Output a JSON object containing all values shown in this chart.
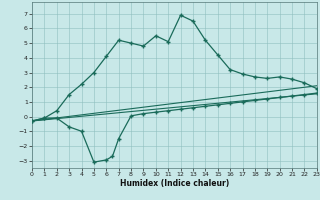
{
  "xlabel": "Humidex (Indice chaleur)",
  "background_color": "#c8e8e8",
  "line_color": "#1a6b5a",
  "xlim": [
    0,
    23
  ],
  "ylim": [
    -3.5,
    7.8
  ],
  "xticks": [
    0,
    1,
    2,
    3,
    4,
    5,
    6,
    7,
    8,
    9,
    10,
    11,
    12,
    13,
    14,
    15,
    16,
    17,
    18,
    19,
    20,
    21,
    22,
    23
  ],
  "yticks": [
    -3,
    -2,
    -1,
    0,
    1,
    2,
    3,
    4,
    5,
    6,
    7
  ],
  "upper_x": [
    0,
    1,
    2,
    3,
    4,
    5,
    6,
    7,
    8,
    9,
    10,
    11,
    12,
    13,
    14,
    15,
    16,
    17,
    18,
    19,
    20,
    21,
    22,
    23
  ],
  "upper_y": [
    -0.3,
    -0.1,
    0.4,
    1.5,
    2.2,
    3.0,
    4.1,
    5.2,
    5.0,
    4.8,
    5.5,
    5.1,
    6.9,
    6.5,
    5.2,
    4.2,
    3.2,
    2.9,
    2.7,
    2.6,
    2.7,
    2.55,
    2.3,
    1.9
  ],
  "lower_x": [
    0,
    1,
    2,
    3,
    4,
    5,
    6,
    6.5,
    7,
    8,
    9,
    10,
    11,
    12,
    13,
    14,
    15,
    16,
    17,
    18,
    19,
    20,
    21,
    22,
    23
  ],
  "lower_y": [
    -0.3,
    -0.1,
    -0.1,
    -0.7,
    -1.0,
    -3.1,
    -2.95,
    -2.7,
    -1.5,
    0.05,
    0.2,
    0.3,
    0.4,
    0.5,
    0.6,
    0.7,
    0.8,
    0.9,
    1.0,
    1.1,
    1.2,
    1.3,
    1.4,
    1.5,
    1.6
  ],
  "line1_x": [
    0,
    23
  ],
  "line1_y": [
    -0.3,
    1.55
  ],
  "line2_x": [
    0,
    23
  ],
  "line2_y": [
    -0.3,
    2.1
  ]
}
